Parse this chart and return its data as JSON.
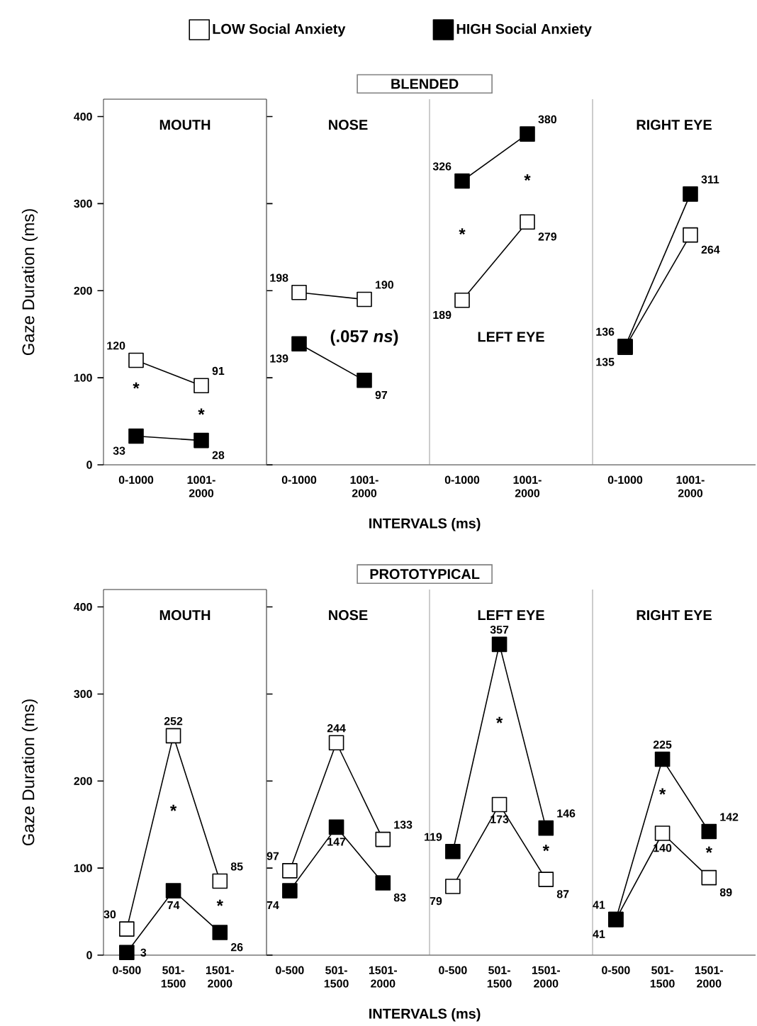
{
  "chart_data": [
    {
      "type": "line",
      "title": "MOUTH",
      "ylabel": "Gaze Duration (ms)",
      "categories": [
        "0-1000",
        "1001-2000"
      ],
      "ylim": [
        0,
        420
      ],
      "yticks": [
        0,
        100,
        200,
        300,
        400
      ],
      "marker": "square",
      "data_labels": true,
      "legend": "top",
      "series": [
        {
          "name": "LOW Social Anxiety",
          "color": "#ffffff",
          "values": [
            120,
            91
          ]
        },
        {
          "name": "HIGH Social Anxiety",
          "color": "#000000",
          "values": [
            33,
            28
          ]
        }
      ],
      "annotations": [
        "*",
        "*"
      ]
    },
    {
      "type": "line",
      "title": "NOSE",
      "xlabel": "INTERVALS (ms)",
      "categories": [
        "0-1000",
        "1001-2000"
      ],
      "ylim": [
        0,
        420
      ],
      "marker": "square",
      "data_labels": true,
      "tick_labels": "x",
      "series": [
        {
          "color": "#ffffff",
          "values": [
            198,
            190
          ]
        },
        {
          "color": "#000000",
          "values": [
            139,
            97
          ]
        }
      ],
      "annotations": [
        "BLENDED",
        "(.057 *ns*)"
      ]
    },
    {
      "type": "line",
      "title": "LEFT EYE",
      "categories": [
        "0-1000",
        "1001-2000"
      ],
      "ylim": [
        0,
        420
      ],
      "marker": "square",
      "data_labels": true,
      "tick_labels": "x",
      "series": [
        {
          "color": "#ffffff",
          "values": [
            189,
            279
          ]
        },
        {
          "color": "#000000",
          "values": [
            326,
            380
          ]
        }
      ],
      "annotations": [
        "*",
        "*"
      ]
    },
    {
      "type": "line",
      "title": "RIGHT EYE",
      "categories": [
        "0-1000",
        "1001-2000"
      ],
      "ylim": [
        0,
        420
      ],
      "marker": "square",
      "data_labels": true,
      "tick_labels": "x",
      "series": [
        {
          "color": "#ffffff",
          "values": [
            135,
            264
          ]
        },
        {
          "color": "#000000",
          "values": [
            136,
            311
          ]
        }
      ]
    },
    {
      "type": "line",
      "title": "MOUTH",
      "ylabel": "Gaze Duration (ms)",
      "categories": [
        "0-500",
        "501-1500",
        "1501-2000"
      ],
      "ylim": [
        0,
        420
      ],
      "yticks": [
        0,
        100,
        200,
        300,
        400
      ],
      "marker": "square",
      "data_labels": true,
      "series": [
        {
          "color": "#ffffff",
          "values": [
            30,
            252,
            85
          ]
        },
        {
          "color": "#000000",
          "values": [
            3,
            74,
            26
          ]
        }
      ],
      "annotations": [
        "*",
        "*"
      ]
    },
    {
      "type": "line",
      "title": "NOSE",
      "xlabel": "INTERVALS (ms)",
      "categories": [
        "0-500",
        "501-1500",
        "1501-2000"
      ],
      "ylim": [
        0,
        420
      ],
      "marker": "square",
      "data_labels": true,
      "tick_labels": "x",
      "series": [
        {
          "color": "#ffffff",
          "values": [
            97,
            244,
            133
          ]
        },
        {
          "color": "#000000",
          "values": [
            74,
            147,
            83
          ]
        }
      ],
      "annotations": [
        "PROTOTYPICAL"
      ]
    },
    {
      "type": "line",
      "title": "LEFT EYE",
      "categories": [
        "0-500",
        "501-1500",
        "1501-2000"
      ],
      "ylim": [
        0,
        420
      ],
      "marker": "square",
      "data_labels": true,
      "tick_labels": "x",
      "series": [
        {
          "color": "#ffffff",
          "values": [
            79,
            173,
            87
          ]
        },
        {
          "color": "#000000",
          "values": [
            119,
            357,
            146
          ]
        }
      ],
      "annotations": [
        "*",
        "*"
      ]
    },
    {
      "type": "line",
      "title": "RIGHT EYE",
      "categories": [
        "0-500",
        "501-1500",
        "1501-2000"
      ],
      "ylim": [
        0,
        420
      ],
      "marker": "square",
      "data_labels": true,
      "tick_labels": "x",
      "series": [
        {
          "color": "#ffffff",
          "values": [
            41,
            140,
            89
          ]
        },
        {
          "color": "#000000",
          "values": [
            41,
            225,
            142
          ]
        }
      ],
      "annotations": [
        "*",
        "*"
      ]
    }
  ]
}
